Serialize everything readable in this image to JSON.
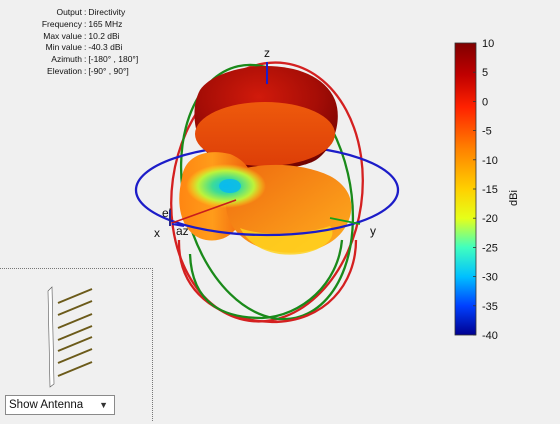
{
  "info": {
    "rows": [
      {
        "label": "Output",
        "value": "Directivity"
      },
      {
        "label": "Frequency",
        "value": "165 MHz"
      },
      {
        "label": "Max value",
        "value": "10.2 dBi"
      },
      {
        "label": "Min value",
        "value": "-40.3 dBi"
      },
      {
        "label": "Azimuth",
        "value": "[-180° , 180°]"
      },
      {
        "label": "Elevation",
        "value": "[-90° , 90°]"
      }
    ]
  },
  "axes": {
    "z": "z",
    "x": "x",
    "y": "y",
    "el": "el",
    "az": "az"
  },
  "colorbar": {
    "min": -40,
    "max": 10,
    "ticks": [
      "10",
      "5",
      "0",
      "-5",
      "-10",
      "-15",
      "-20",
      "-25",
      "-30",
      "-35",
      "-40"
    ],
    "unit": "dBi"
  },
  "colors": {
    "x_ring": "#d42020",
    "z_ring": "#1a8a1a",
    "xy_ring": "#1c1cc8"
  },
  "show_select": {
    "selected": "Show Antenna",
    "options": [
      "Show Antenna"
    ]
  }
}
